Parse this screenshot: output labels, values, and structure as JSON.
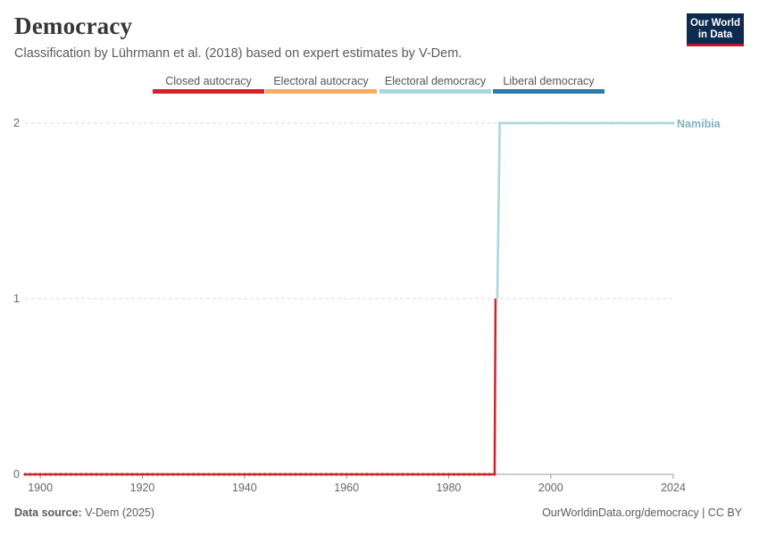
{
  "header": {
    "title": "Democracy",
    "subtitle": "Classification by Lührmann et al. (2018) based on expert estimates by V-Dem."
  },
  "logo": {
    "line1": "Our World",
    "line2": "in Data"
  },
  "footer": {
    "source_label": "Data source:",
    "source_value": "V-Dem (2025)",
    "url": "OurWorldinData.org/democracy | CC BY"
  },
  "chart_data": {
    "type": "line",
    "title": "Democracy",
    "subtitle": "Classification by Lührmann et al. (2018) based on expert estimates by V-Dem.",
    "xlabel": "",
    "ylabel": "",
    "xlim": [
      1897,
      2024
    ],
    "ylim": [
      0,
      2
    ],
    "x_ticks": [
      "1900",
      "1920",
      "1940",
      "1960",
      "1980",
      "2000",
      "2024"
    ],
    "y_ticks": [
      "0",
      "1",
      "2"
    ],
    "grid": "horizontal dashed",
    "legend_position": "top",
    "legend": [
      {
        "label": "Closed autocracy",
        "color": "#d1222a"
      },
      {
        "label": "Electoral autocracy",
        "color": "#f4ad62"
      },
      {
        "label": "Electoral democracy",
        "color": "#a9d6dd"
      },
      {
        "label": "Liberal democracy",
        "color": "#2f7aa9"
      }
    ],
    "series": [
      {
        "name": "Namibia",
        "segments": [
          {
            "x_start": 1897,
            "x_end": 1989,
            "y": 0,
            "color": "#d1222a"
          },
          {
            "x_start": 1990,
            "x_end": 2024,
            "y": 2,
            "color": "#a9d6dd"
          }
        ]
      }
    ]
  }
}
